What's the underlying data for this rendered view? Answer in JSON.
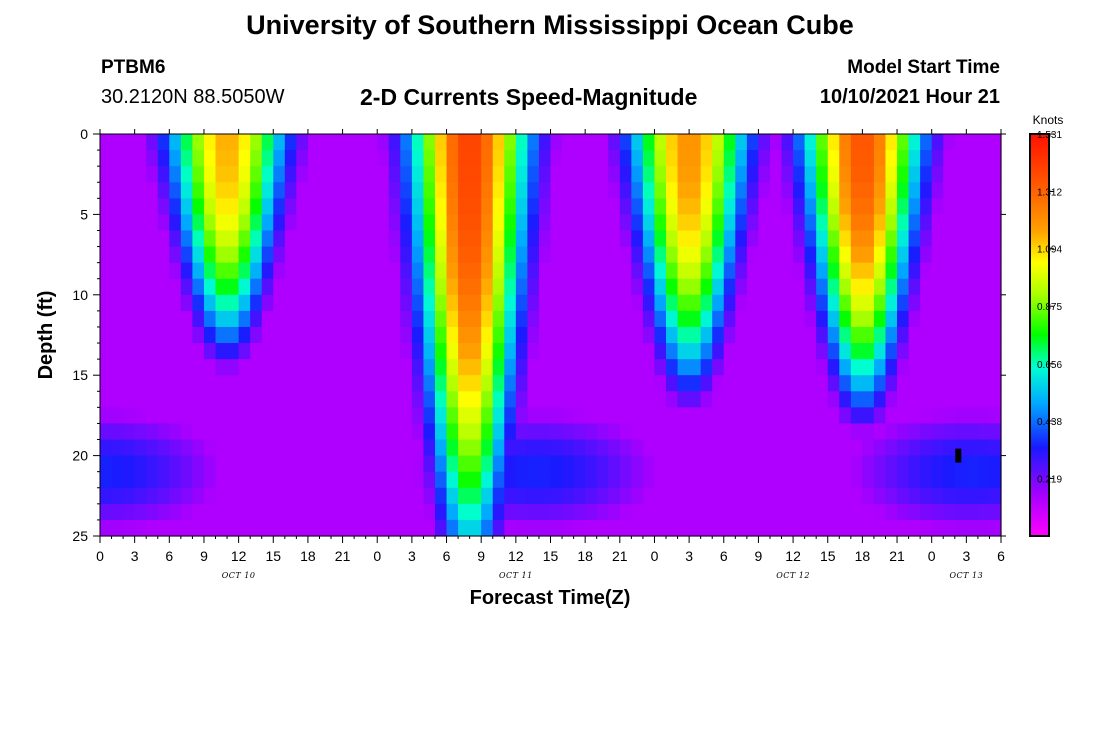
{
  "page": {
    "title_top": "University of Southern Mississippi Ocean Cube",
    "title_bottom": "University of Southern Mississippi Ocean Cube",
    "station_id": "PTBM6",
    "coordinates": "30.2120N  88.5050W",
    "plot_title": "2-D Currents Speed-Magnitude",
    "model_start_label": "Model Start Time",
    "model_start_value": "10/10/2021 Hour 21"
  },
  "chart_data": {
    "type": "heatmap",
    "title": "2-D Currents Speed-Magnitude",
    "xlabel": "Forecast Time(Z)",
    "ylabel": "Depth (ft)",
    "x_range_hours": [
      0,
      78
    ],
    "y_range_ft": [
      0,
      25
    ],
    "y_inverted": true,
    "x_ticks": [
      "0",
      "3",
      "6",
      "9",
      "12",
      "15",
      "18",
      "21",
      "0",
      "3",
      "6",
      "9",
      "12",
      "15",
      "18",
      "21",
      "0",
      "3",
      "6",
      "9",
      "12",
      "15",
      "18",
      "21",
      "0",
      "3",
      "6"
    ],
    "y_ticks": [
      "0",
      "5",
      "10",
      "15",
      "20",
      "25"
    ],
    "day_labels": [
      {
        "label": "OCT 10",
        "hour": 12
      },
      {
        "label": "OCT 11",
        "hour": 36
      },
      {
        "label": "OCT 12",
        "hour": 60
      },
      {
        "label": "OCT 13",
        "hour": 75
      }
    ],
    "colorbar": {
      "unit": "Knots",
      "ticks": [
        "1.531",
        "1.312",
        "1.094",
        "0.875",
        "0.656",
        "0.438",
        "0.219"
      ],
      "min": 0,
      "max": 1.531
    },
    "high_speed_cores": [
      {
        "center_hour": 11,
        "peak": 1.15,
        "bottom_depth_ft": 12
      },
      {
        "center_hour": 32,
        "peak": 1.4,
        "bottom_depth_ft": 24
      },
      {
        "center_hour": 51,
        "peak": 1.2,
        "bottom_depth_ft": 14
      },
      {
        "center_hour": 66,
        "peak": 1.35,
        "bottom_depth_ft": 15
      }
    ],
    "marker": {
      "hour": 74.3,
      "depth_ft": 20
    }
  }
}
